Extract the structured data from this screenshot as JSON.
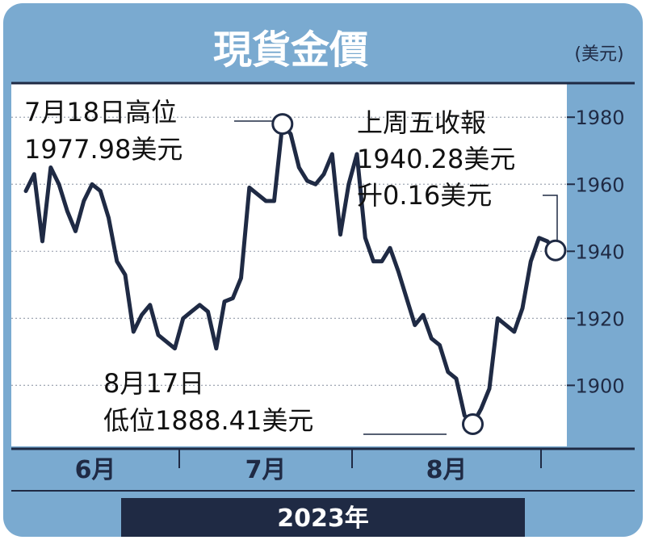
{
  "header": {
    "title": "現貨金價",
    "unit": "(美元)"
  },
  "footer": {
    "year": "2023年"
  },
  "colors": {
    "frame": "#7aaad0",
    "line": "#1f2a44",
    "panel": "#ffffff",
    "year_bar": "#1f2a44"
  },
  "annotations": {
    "high": [
      "7月18日高位",
      "1977.98美元"
    ],
    "low": [
      "8月17日",
      "低位1888.41美元"
    ],
    "last": [
      "上周五收報",
      "1940.28美元",
      "升0.16美元"
    ]
  },
  "chart_data": {
    "type": "line",
    "title": "現貨金價",
    "ylabel": "(美元)",
    "xlabel": "2023年",
    "ylim": [
      1883,
      1988
    ],
    "grid": true,
    "yticks": [
      1900,
      1920,
      1940,
      1960,
      1980
    ],
    "ytick_labels": [
      "1900",
      "1920",
      "1940",
      "1960",
      "1980"
    ],
    "months": [
      "6月",
      "7月",
      "8月"
    ],
    "values": [
      1958,
      1963,
      1943,
      1965,
      1960,
      1952,
      1946,
      1955,
      1960,
      1958,
      1950,
      1937,
      1933,
      1916,
      1921,
      1924,
      1915,
      1913,
      1911,
      1920,
      1922,
      1924,
      1922,
      1911,
      1925,
      1926,
      1932,
      1959,
      1957,
      1955,
      1955,
      1977.98,
      1975,
      1965,
      1961,
      1960,
      1963,
      1969,
      1945,
      1960,
      1969,
      1944,
      1937,
      1937,
      1941,
      1934,
      1926,
      1918,
      1921,
      1914,
      1912,
      1904,
      1902,
      1891,
      1888.41,
      1893,
      1899,
      1920,
      1918,
      1916,
      1923,
      1937,
      1944,
      1943,
      1940.28
    ],
    "points": [
      {
        "label": "7月18日高位",
        "value": 1977.98
      },
      {
        "label": "8月17日低位",
        "value": 1888.41
      },
      {
        "label": "上周五收報",
        "value": 1940.28
      }
    ]
  }
}
